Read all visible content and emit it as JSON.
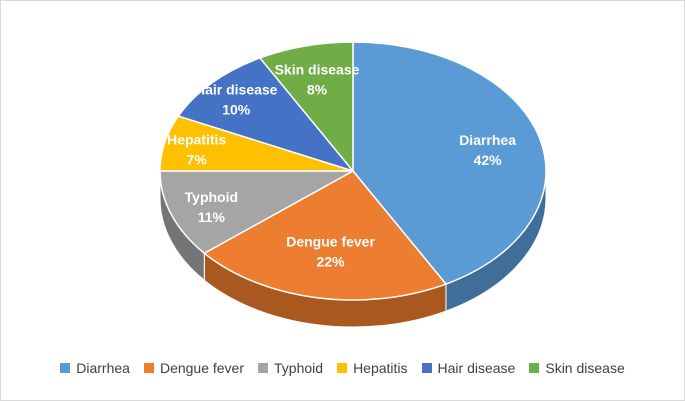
{
  "chart_data": {
    "type": "pie",
    "categories": [
      "Diarrhea",
      "Dengue fever",
      "Typhoid",
      "Hepatitis",
      "Hair disease",
      "Skin disease"
    ],
    "values": [
      42,
      22,
      11,
      7,
      10,
      8
    ],
    "percent_labels": [
      "42%",
      "22%",
      "11%",
      "7%",
      "10%",
      "8%"
    ],
    "colors": [
      "#5B9BD5",
      "#ED7D31",
      "#A5A5A5",
      "#FFC000",
      "#4472C4",
      "#70AD47"
    ],
    "side_colors": [
      "#3F6E98",
      "#A9581F",
      "#757575",
      "#B98B00",
      "#2E4F8B",
      "#4E7A31"
    ],
    "start_at": "12 o'clock",
    "direction": "clockwise",
    "three_d": true,
    "legend_position": "bottom"
  }
}
